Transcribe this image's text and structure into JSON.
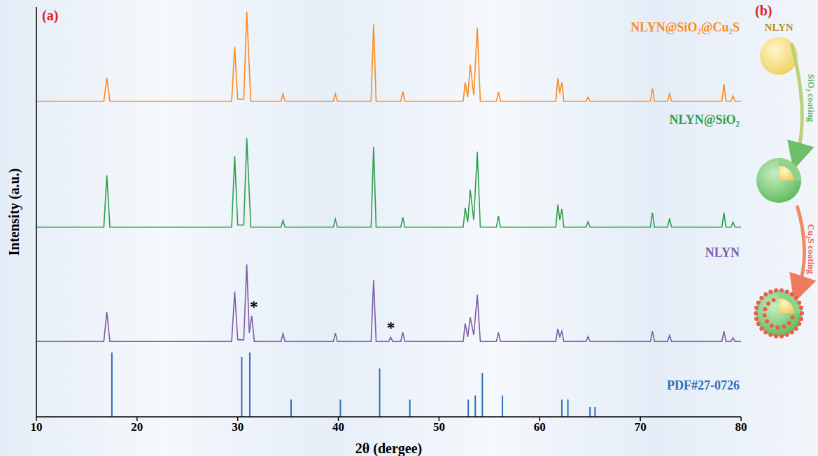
{
  "chart_data": {
    "type": "line",
    "x_label": "2θ (dergee)",
    "y_label": "Intensity (a.u.)",
    "xlim": [
      10,
      80
    ],
    "xticks": [
      10,
      20,
      30,
      40,
      50,
      60,
      70,
      80
    ],
    "ylim": [
      0,
      100
    ],
    "tick_labels": "x",
    "grid": false,
    "series": [
      {
        "name": "NLYN@SiO₂@Cu₂S",
        "type": "line",
        "color": "#ff8a1c",
        "x": [
          10,
          16.7,
          17.0,
          17.3,
          29.4,
          29.7,
          30.0,
          30.6,
          30.9,
          31.3,
          34.3,
          34.5,
          34.7,
          39.5,
          39.7,
          39.9,
          43.25,
          43.5,
          43.75,
          46.2,
          46.4,
          46.6,
          52.4,
          52.6,
          52.85,
          53.1,
          53.45,
          53.8,
          54.1,
          55.7,
          55.9,
          56.1,
          61.6,
          61.8,
          62.0,
          62.2,
          62.4,
          64.6,
          64.8,
          65.0,
          71.0,
          71.2,
          71.4,
          72.7,
          72.9,
          73.1,
          78.1,
          78.3,
          78.5,
          79.0,
          79.2,
          79.4,
          80
        ],
        "values": [
          77,
          77,
          82.7,
          77,
          77,
          90.3,
          77.5,
          77.5,
          98.9,
          77,
          77,
          78.8,
          77,
          77,
          78.8,
          77,
          77,
          95.8,
          77,
          77,
          79.4,
          77,
          77,
          81.6,
          78,
          85.9,
          78.5,
          95.0,
          77,
          77,
          79.3,
          77,
          77,
          82.7,
          79,
          81.6,
          77,
          77,
          78.0,
          77,
          77,
          80.1,
          77,
          77,
          78.8,
          77,
          77,
          81.2,
          77,
          77,
          78.3,
          77,
          77
        ]
      },
      {
        "name": "NLYN@SiO₂",
        "type": "line",
        "color": "#2f9e4b",
        "x": [
          10,
          16.7,
          17.0,
          17.3,
          29.4,
          29.7,
          30.0,
          30.6,
          30.9,
          31.3,
          34.3,
          34.5,
          34.7,
          39.5,
          39.7,
          39.9,
          43.25,
          43.5,
          43.75,
          46.2,
          46.4,
          46.6,
          52.4,
          52.6,
          52.85,
          53.1,
          53.45,
          53.8,
          54.1,
          55.7,
          55.9,
          56.1,
          61.6,
          61.8,
          62.0,
          62.2,
          62.4,
          64.6,
          64.8,
          65.0,
          71.0,
          71.2,
          71.4,
          72.7,
          72.9,
          73.1,
          78.1,
          78.3,
          78.5,
          79.0,
          79.2,
          79.4,
          80
        ],
        "values": [
          46.3,
          46.3,
          58.9,
          46.3,
          46.3,
          63.6,
          46.8,
          46.8,
          68.0,
          46.3,
          46.3,
          47.9,
          46.3,
          46.3,
          48.2,
          46.3,
          46.3,
          65.9,
          46.3,
          46.3,
          48.7,
          46.3,
          46.3,
          51.0,
          47.5,
          55.4,
          48,
          64.7,
          46.3,
          46.3,
          49.0,
          46.3,
          46.3,
          51.8,
          48,
          50.7,
          46.3,
          46.3,
          47.6,
          46.3,
          46.3,
          49.8,
          46.3,
          46.3,
          48.4,
          46.3,
          46.3,
          49.8,
          46.3,
          46.3,
          47.5,
          46.3,
          46.3
        ]
      },
      {
        "name": "NLYN",
        "type": "line",
        "color": "#7e5ca8",
        "x": [
          10,
          16.7,
          17.0,
          17.3,
          29.4,
          29.7,
          30.0,
          30.6,
          30.9,
          31.15,
          31.4,
          31.65,
          34.3,
          34.5,
          34.7,
          39.5,
          39.7,
          39.9,
          43.25,
          43.5,
          43.75,
          45.0,
          45.2,
          45.4,
          46.2,
          46.4,
          46.6,
          52.4,
          52.6,
          52.85,
          53.1,
          53.45,
          53.8,
          54.1,
          55.7,
          55.9,
          56.1,
          61.6,
          61.8,
          62.0,
          62.2,
          62.4,
          64.6,
          64.8,
          65.0,
          71.0,
          71.2,
          71.4,
          72.7,
          72.9,
          73.1,
          78.1,
          78.3,
          78.5,
          79.0,
          79.2,
          79.4,
          80
        ],
        "values": [
          18.4,
          18.4,
          25.6,
          18.4,
          18.4,
          30.6,
          18.8,
          18.8,
          37.2,
          20.5,
          24.6,
          18.4,
          18.4,
          20.3,
          18.4,
          18.4,
          20.4,
          18.4,
          18.4,
          33.4,
          18.4,
          18.4,
          19.4,
          18.4,
          18.4,
          20.6,
          18.4,
          18.4,
          22.8,
          19.5,
          24.3,
          20,
          29.8,
          18.4,
          18.4,
          20.6,
          18.4,
          18.4,
          21.5,
          19.5,
          20.9,
          18.4,
          18.4,
          19.6,
          18.4,
          18.4,
          20.9,
          18.4,
          18.4,
          19.9,
          18.4,
          18.4,
          20.9,
          18.4,
          18.4,
          19.3,
          18.4,
          18.4
        ]
      },
      {
        "name": "PDF#27-0726",
        "type": "stick",
        "color": "#2f6db5",
        "x": [
          17.5,
          30.4,
          31.2,
          35.3,
          40.2,
          44.1,
          47.1,
          52.9,
          53.6,
          54.3,
          56.3,
          62.2,
          62.8,
          65.0,
          65.5
        ],
        "values": [
          15.7,
          14.6,
          15.7,
          4.2,
          4.2,
          11.8,
          4.2,
          4.2,
          5.2,
          10.7,
          5.2,
          4.2,
          4.2,
          2.4,
          2.4
        ]
      }
    ],
    "annotations": [
      {
        "text": "*",
        "x": 31.6,
        "y": 27
      },
      {
        "text": "*",
        "x": 45.2,
        "y": 22
      }
    ]
  },
  "panel_label": "(a)",
  "diagram": {
    "panel_label": "(b)",
    "nodes": [
      {
        "label": "NLYN"
      }
    ],
    "arrows": [
      {
        "label": "SiO₂ coating"
      },
      {
        "label": "Cu₂S coating"
      }
    ]
  }
}
